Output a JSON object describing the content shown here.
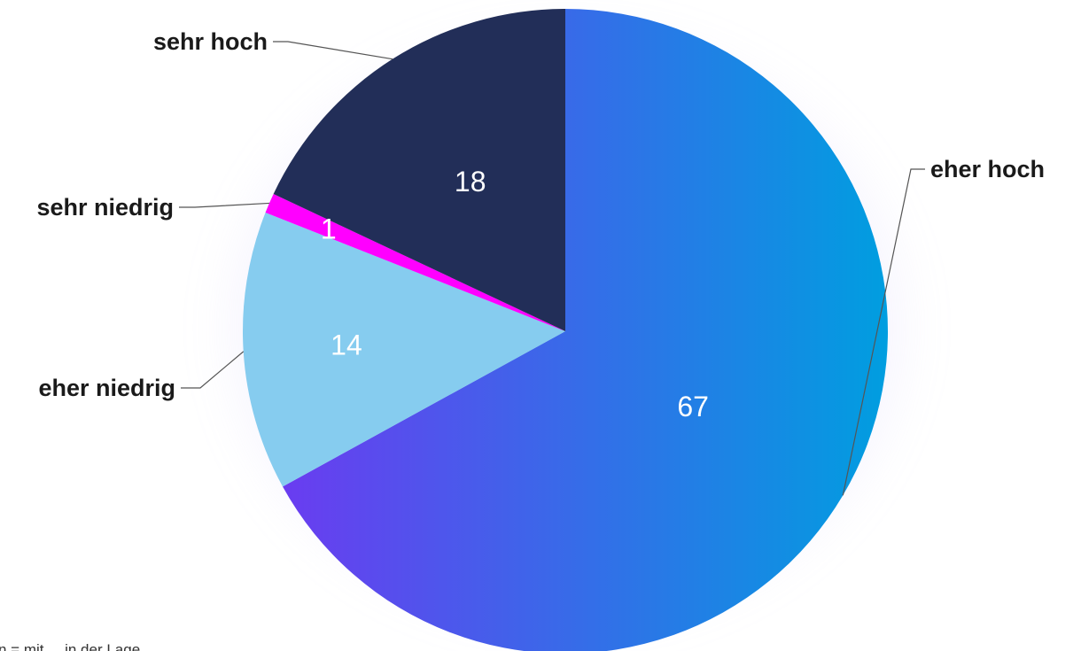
{
  "chart_data": {
    "type": "pie",
    "title": "",
    "start_angle_deg": 0,
    "direction": "clockwise",
    "slices": [
      {
        "label": "eher hoch",
        "value": 67,
        "color": "#0aa0e0",
        "gradient": [
          "#6a3cf0",
          "#009ee0"
        ]
      },
      {
        "label": "eher niedrig",
        "value": 14,
        "color": "#86ccef"
      },
      {
        "label": "sehr niedrig",
        "value": 1,
        "color": "#ff00ff"
      },
      {
        "label": "sehr hoch",
        "value": 18,
        "color": "#222e58"
      }
    ]
  },
  "footnote": "n = mit ... in der Lage"
}
